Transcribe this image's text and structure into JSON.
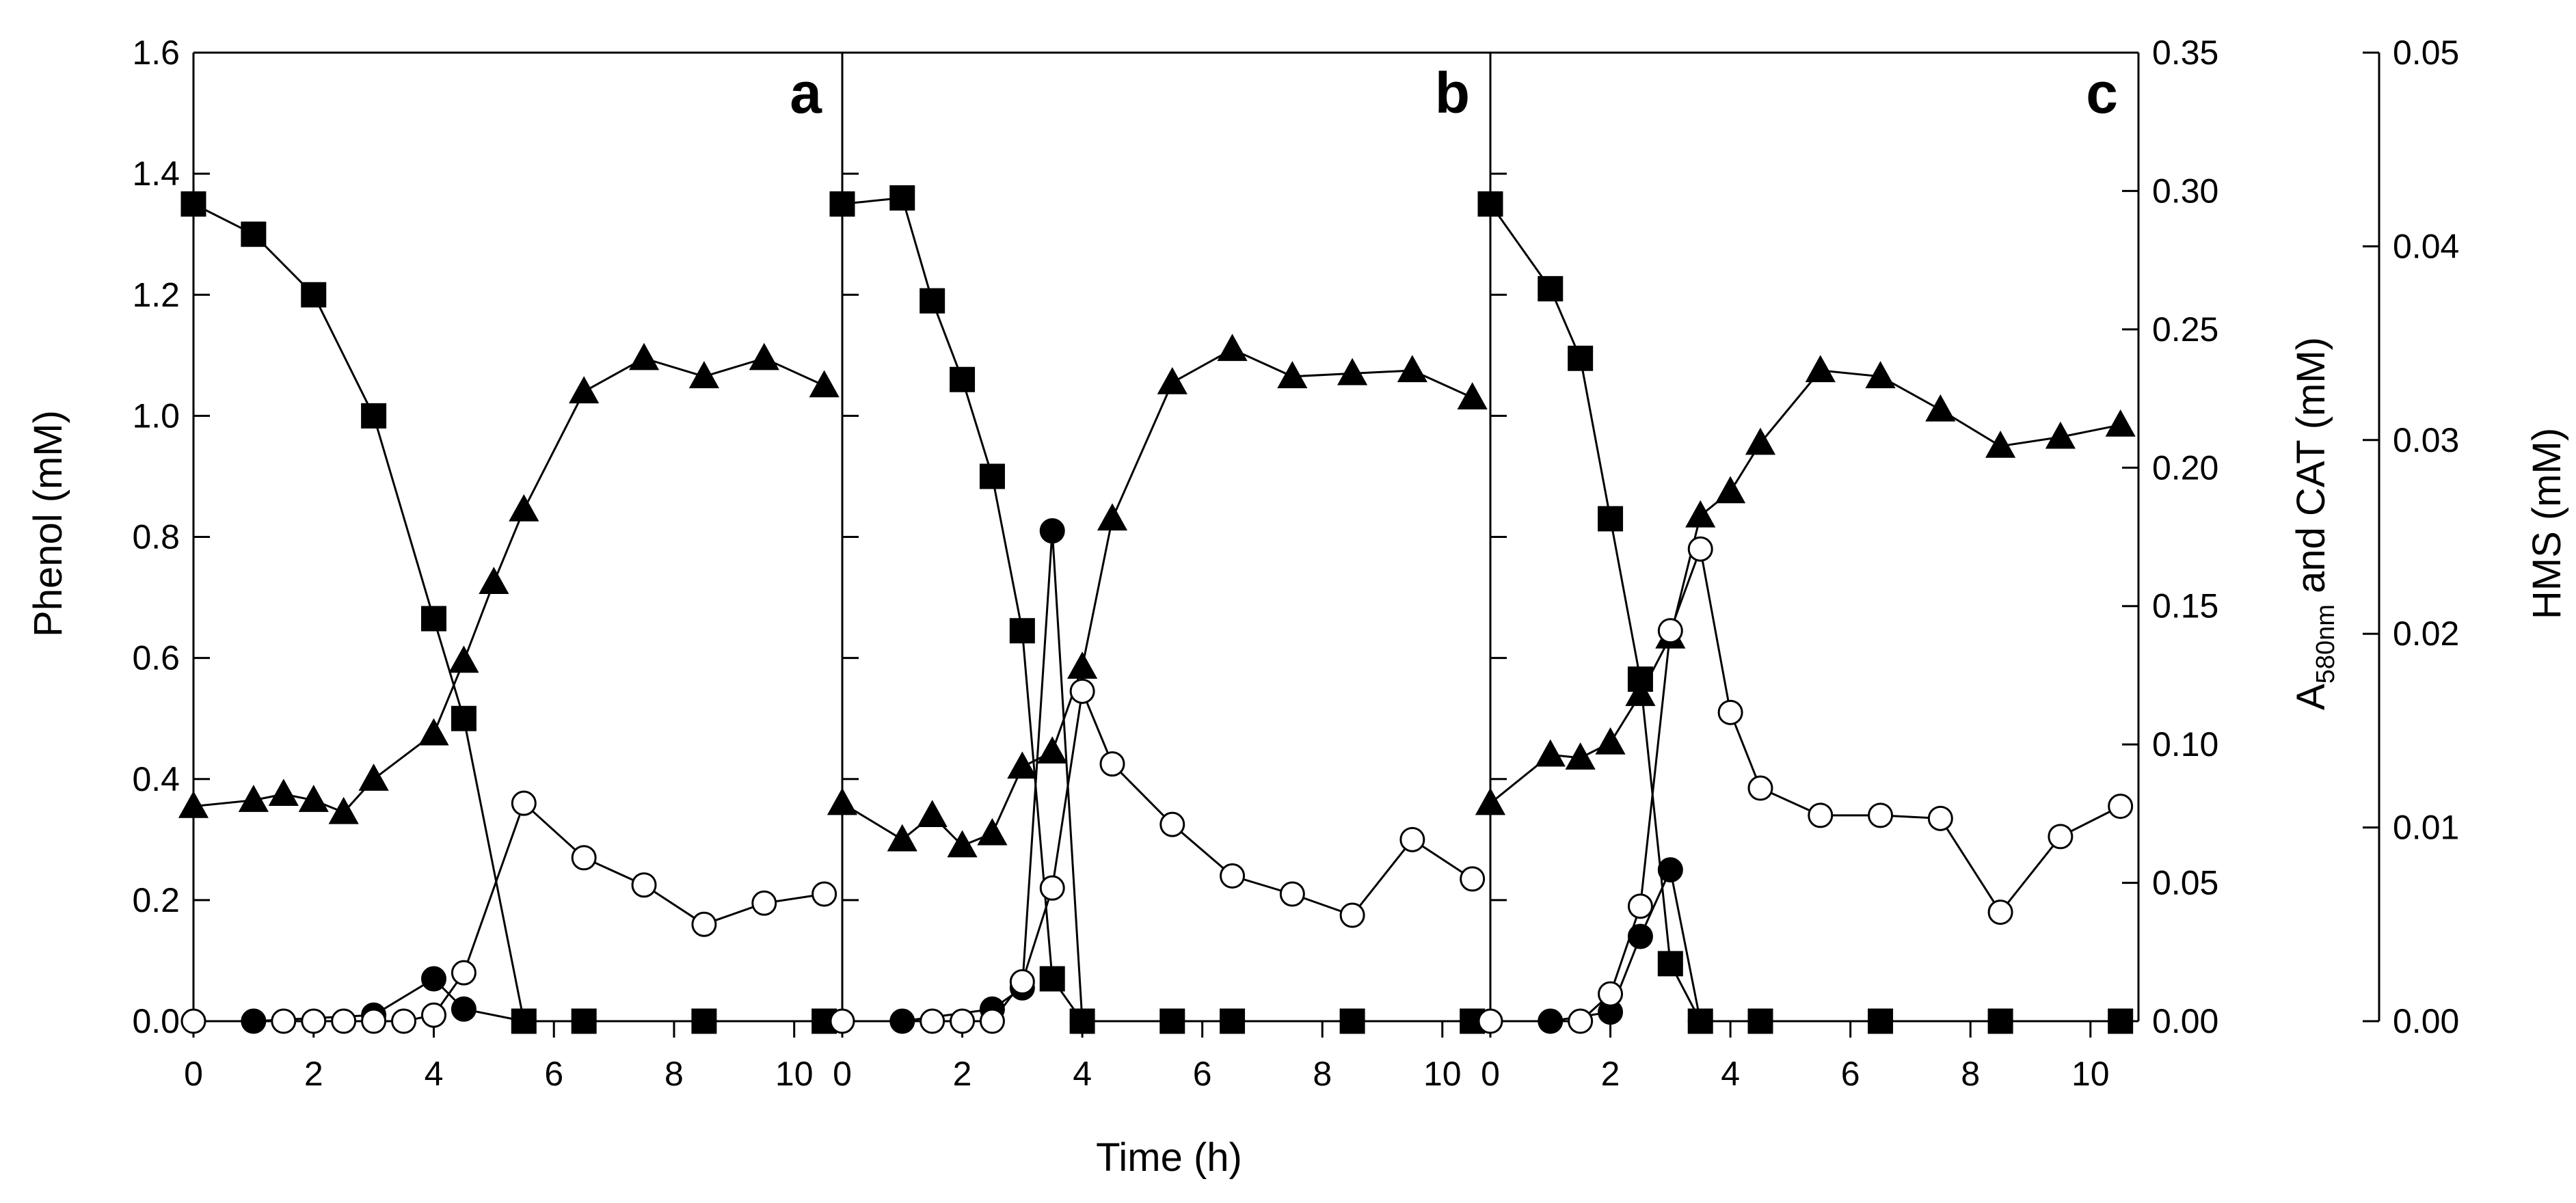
{
  "chart_data": {
    "type": "line",
    "layout": "three panels sharing axes",
    "xlabel": "Time (h)",
    "xlim": [
      0,
      10.8
    ],
    "x_ticks": [
      "0",
      "2",
      "4",
      "6",
      "8",
      "10"
    ],
    "y_left": {
      "label": "Phenol (mM)",
      "lim": [
        0,
        1.6
      ],
      "ticks": [
        "0.0",
        "0.2",
        "0.4",
        "0.6",
        "0.8",
        "1.0",
        "1.2",
        "1.4",
        "1.6"
      ]
    },
    "y_right1": {
      "label_main": "A",
      "label_sub": "580nm",
      "label_rest": " and CAT (mM)",
      "lim": [
        0,
        0.35
      ],
      "ticks": [
        "0.00",
        "0.05",
        "0.10",
        "0.15",
        "0.20",
        "0.25",
        "0.30",
        "0.35"
      ]
    },
    "y_right2": {
      "label": "HMS (mM)",
      "lim": [
        0,
        0.05
      ],
      "ticks": [
        "0.00",
        "0.01",
        "0.02",
        "0.03",
        "0.04",
        "0.05"
      ]
    },
    "panels": [
      {
        "letter": "a",
        "series": [
          {
            "name": "Phenol",
            "marker": "filled-square",
            "axis": "left",
            "points": [
              [
                0,
                1.35
              ],
              [
                1,
                1.3
              ],
              [
                2,
                1.2
              ],
              [
                3,
                1.0
              ],
              [
                4,
                0.665
              ],
              [
                4.5,
                0.5
              ],
              [
                5.5,
                0.0
              ],
              [
                6.5,
                0.0
              ],
              [
                8.5,
                0.0
              ],
              [
                10.5,
                0.0
              ]
            ]
          },
          {
            "name": "A580nm",
            "marker": "filled-triangle",
            "axis": "left",
            "points": [
              [
                0,
                0.355
              ],
              [
                1,
                0.365
              ],
              [
                1.5,
                0.375
              ],
              [
                2,
                0.365
              ],
              [
                2.5,
                0.345
              ],
              [
                3,
                0.4
              ],
              [
                4,
                0.475
              ],
              [
                4.5,
                0.595
              ],
              [
                5,
                0.725
              ],
              [
                5.5,
                0.845
              ],
              [
                6.5,
                1.04
              ],
              [
                7.5,
                1.095
              ],
              [
                8.5,
                1.065
              ],
              [
                9.5,
                1.095
              ],
              [
                10.5,
                1.05
              ]
            ]
          },
          {
            "name": "CAT",
            "marker": "filled-circle",
            "axis": "left",
            "points": [
              [
                1,
                0.0
              ],
              [
                3,
                0.01
              ],
              [
                4,
                0.07
              ],
              [
                4.5,
                0.02
              ],
              [
                5.5,
                0.0
              ]
            ]
          },
          {
            "name": "HMS",
            "marker": "open-circle",
            "axis": "left",
            "points": [
              [
                0,
                0.0
              ],
              [
                1.5,
                0.0
              ],
              [
                2,
                0.0
              ],
              [
                2.5,
                0.0
              ],
              [
                3,
                0.0
              ],
              [
                3.5,
                0.0
              ],
              [
                4,
                0.01
              ],
              [
                4.5,
                0.08
              ],
              [
                5.5,
                0.36
              ],
              [
                6.5,
                0.27
              ],
              [
                7.5,
                0.225
              ],
              [
                8.5,
                0.16
              ],
              [
                9.5,
                0.195
              ],
              [
                10.5,
                0.21
              ]
            ]
          }
        ]
      },
      {
        "letter": "b",
        "series": [
          {
            "name": "Phenol",
            "marker": "filled-square",
            "axis": "left",
            "points": [
              [
                0,
                1.35
              ],
              [
                1,
                1.36
              ],
              [
                1.5,
                1.19
              ],
              [
                2,
                1.06
              ],
              [
                2.5,
                0.9
              ],
              [
                3,
                0.645
              ],
              [
                3.5,
                0.07
              ],
              [
                4,
                0.0
              ],
              [
                5.5,
                0.0
              ],
              [
                6.5,
                0.0
              ],
              [
                8.5,
                0.0
              ],
              [
                10.5,
                0.0
              ]
            ]
          },
          {
            "name": "A580nm",
            "marker": "filled-triangle",
            "axis": "left",
            "points": [
              [
                0,
                0.36
              ],
              [
                1,
                0.3
              ],
              [
                1.5,
                0.34
              ],
              [
                2,
                0.29
              ],
              [
                2.5,
                0.31
              ],
              [
                3,
                0.42
              ],
              [
                3.5,
                0.445
              ],
              [
                4,
                0.585
              ],
              [
                4.5,
                0.83
              ],
              [
                5.5,
                1.055
              ],
              [
                6.5,
                1.11
              ],
              [
                7.5,
                1.065
              ],
              [
                8.5,
                1.07
              ],
              [
                9.5,
                1.075
              ],
              [
                10.5,
                1.03
              ]
            ]
          },
          {
            "name": "CAT",
            "marker": "filled-circle",
            "axis": "left",
            "points": [
              [
                1,
                0.0
              ],
              [
                2.5,
                0.02
              ],
              [
                3,
                0.055
              ],
              [
                3.5,
                0.81
              ],
              [
                4,
                0.0
              ]
            ]
          },
          {
            "name": "HMS",
            "marker": "open-circle",
            "axis": "left",
            "points": [
              [
                0,
                0.0
              ],
              [
                1.5,
                0.0
              ],
              [
                2,
                0.0
              ],
              [
                2.5,
                0.0
              ],
              [
                3,
                0.065
              ],
              [
                3.5,
                0.22
              ],
              [
                4,
                0.545
              ],
              [
                4.5,
                0.425
              ],
              [
                5.5,
                0.325
              ],
              [
                6.5,
                0.24
              ],
              [
                7.5,
                0.21
              ],
              [
                8.5,
                0.175
              ],
              [
                9.5,
                0.3
              ],
              [
                10.5,
                0.235
              ]
            ]
          }
        ]
      },
      {
        "letter": "c",
        "series": [
          {
            "name": "Phenol",
            "marker": "filled-square",
            "axis": "left",
            "points": [
              [
                0,
                1.35
              ],
              [
                1,
                1.21
              ],
              [
                1.5,
                1.095
              ],
              [
                2,
                0.83
              ],
              [
                2.5,
                0.565
              ],
              [
                3,
                0.095
              ],
              [
                3.5,
                0.0
              ],
              [
                4.5,
                0.0
              ],
              [
                6.5,
                0.0
              ],
              [
                8.5,
                0.0
              ],
              [
                10.5,
                0.0
              ]
            ]
          },
          {
            "name": "A580nm",
            "marker": "filled-triangle",
            "axis": "left",
            "points": [
              [
                0,
                0.36
              ],
              [
                1,
                0.44
              ],
              [
                1.5,
                0.435
              ],
              [
                2,
                0.46
              ],
              [
                2.5,
                0.54
              ],
              [
                3,
                0.635
              ],
              [
                3.5,
                0.835
              ],
              [
                4,
                0.875
              ],
              [
                4.5,
                0.955
              ],
              [
                5.5,
                1.075
              ],
              [
                6.5,
                1.065
              ],
              [
                7.5,
                1.01
              ],
              [
                8.5,
                0.95
              ],
              [
                9.5,
                0.965
              ],
              [
                10.5,
                0.985
              ]
            ]
          },
          {
            "name": "CAT",
            "marker": "filled-circle",
            "axis": "left",
            "points": [
              [
                1,
                0.0
              ],
              [
                2,
                0.015
              ],
              [
                2.5,
                0.14
              ],
              [
                3,
                0.25
              ],
              [
                3.5,
                0.0
              ]
            ]
          },
          {
            "name": "HMS",
            "marker": "open-circle",
            "axis": "left",
            "points": [
              [
                0,
                0.0
              ],
              [
                1.5,
                0.0
              ],
              [
                2,
                0.045
              ],
              [
                2.5,
                0.19
              ],
              [
                3,
                0.645
              ],
              [
                3.5,
                0.78
              ],
              [
                4,
                0.51
              ],
              [
                4.5,
                0.385
              ],
              [
                5.5,
                0.34
              ],
              [
                6.5,
                0.34
              ],
              [
                7.5,
                0.335
              ],
              [
                8.5,
                0.18
              ],
              [
                9.5,
                0.305
              ],
              [
                10.5,
                0.355
              ]
            ]
          }
        ]
      }
    ]
  }
}
